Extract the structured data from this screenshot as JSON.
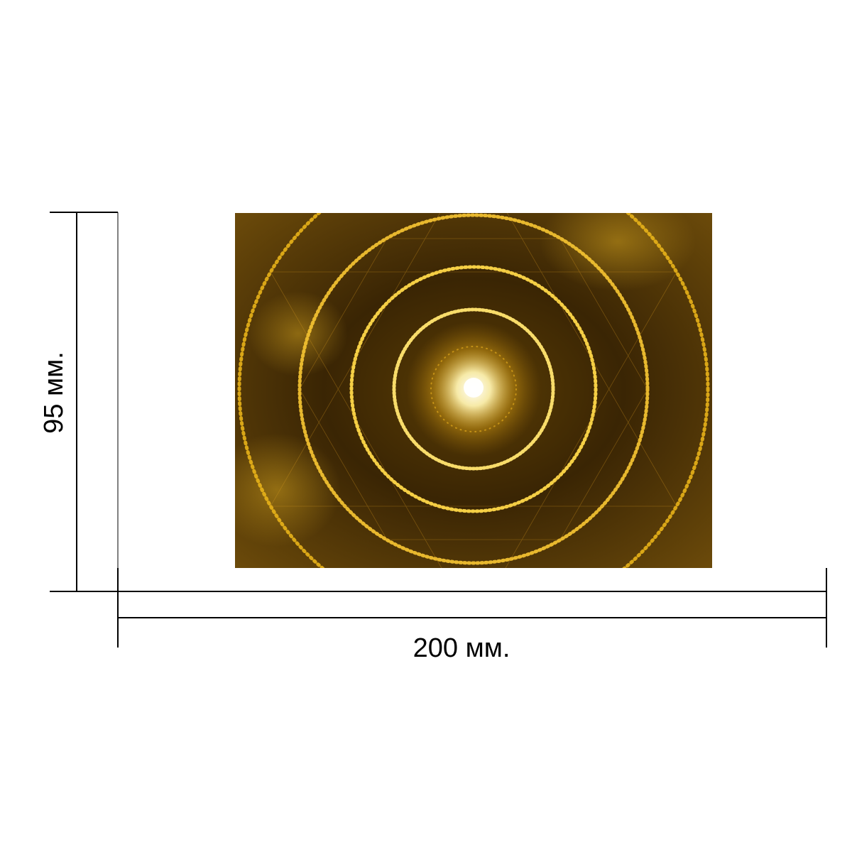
{
  "dimensions": {
    "height_label": "95 мм.",
    "width_label": "200 мм."
  },
  "image": {
    "colors": {
      "background_dark": "#2a1a02",
      "gold": "#d9a514",
      "glow": "#fff6c8"
    }
  }
}
